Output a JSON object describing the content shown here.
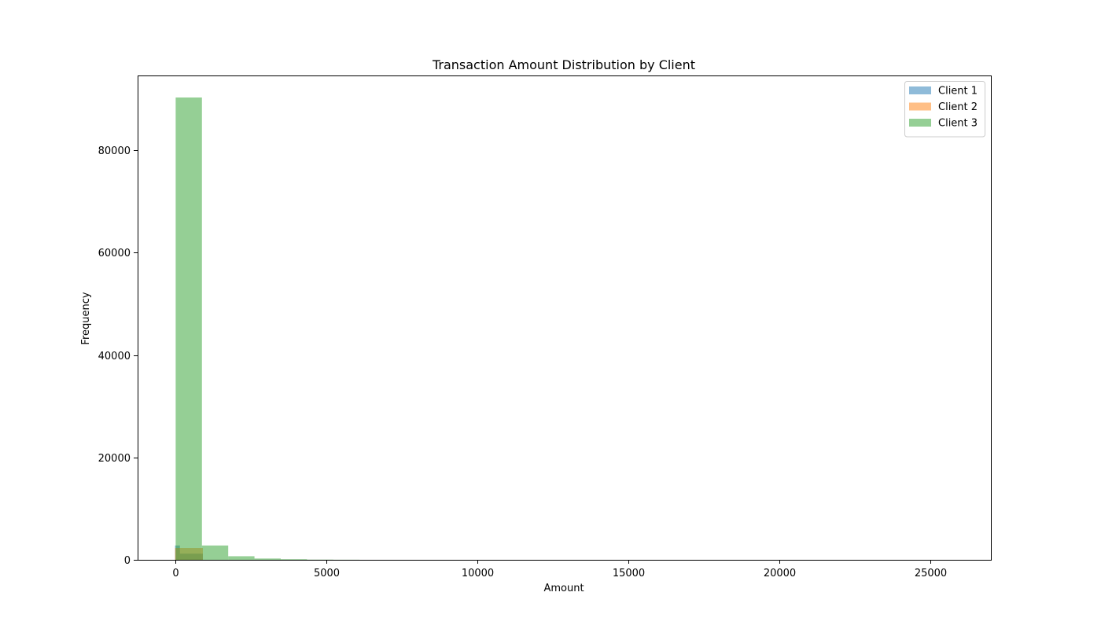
{
  "chart_data": {
    "type": "bar",
    "subtype": "histogram",
    "title": "Transaction Amount Distribution by Client",
    "xlabel": "Amount",
    "ylabel": "Frequency",
    "xlim": [
      -1260,
      27000
    ],
    "ylim": [
      0,
      94600
    ],
    "xticks": [
      0,
      5000,
      10000,
      15000,
      20000,
      25000
    ],
    "yticks": [
      0,
      20000,
      40000,
      60000,
      80000
    ],
    "grid": false,
    "legend_position": "top-right",
    "bar_alpha": 0.5,
    "series": [
      {
        "name": "Client 1",
        "color": "#1f77b4",
        "bins": [
          {
            "x0": -20,
            "x1": 140,
            "value": 2800
          },
          {
            "x0": 140,
            "x1": 900,
            "value": 1200
          }
        ]
      },
      {
        "name": "Client 2",
        "color": "#ff7f0e",
        "bins": [
          {
            "x0": -20,
            "x1": 900,
            "value": 2300
          }
        ]
      },
      {
        "name": "Client 3",
        "color": "#2ca02c",
        "bins": [
          {
            "x0": 0,
            "x1": 870,
            "value": 90300
          },
          {
            "x0": 870,
            "x1": 1740,
            "value": 2800
          },
          {
            "x0": 1740,
            "x1": 2610,
            "value": 700
          },
          {
            "x0": 2610,
            "x1": 3480,
            "value": 250
          },
          {
            "x0": 3480,
            "x1": 4350,
            "value": 120
          },
          {
            "x0": 4350,
            "x1": 5220,
            "value": 40
          },
          {
            "x0": 5220,
            "x1": 6090,
            "value": 15
          }
        ]
      }
    ]
  }
}
